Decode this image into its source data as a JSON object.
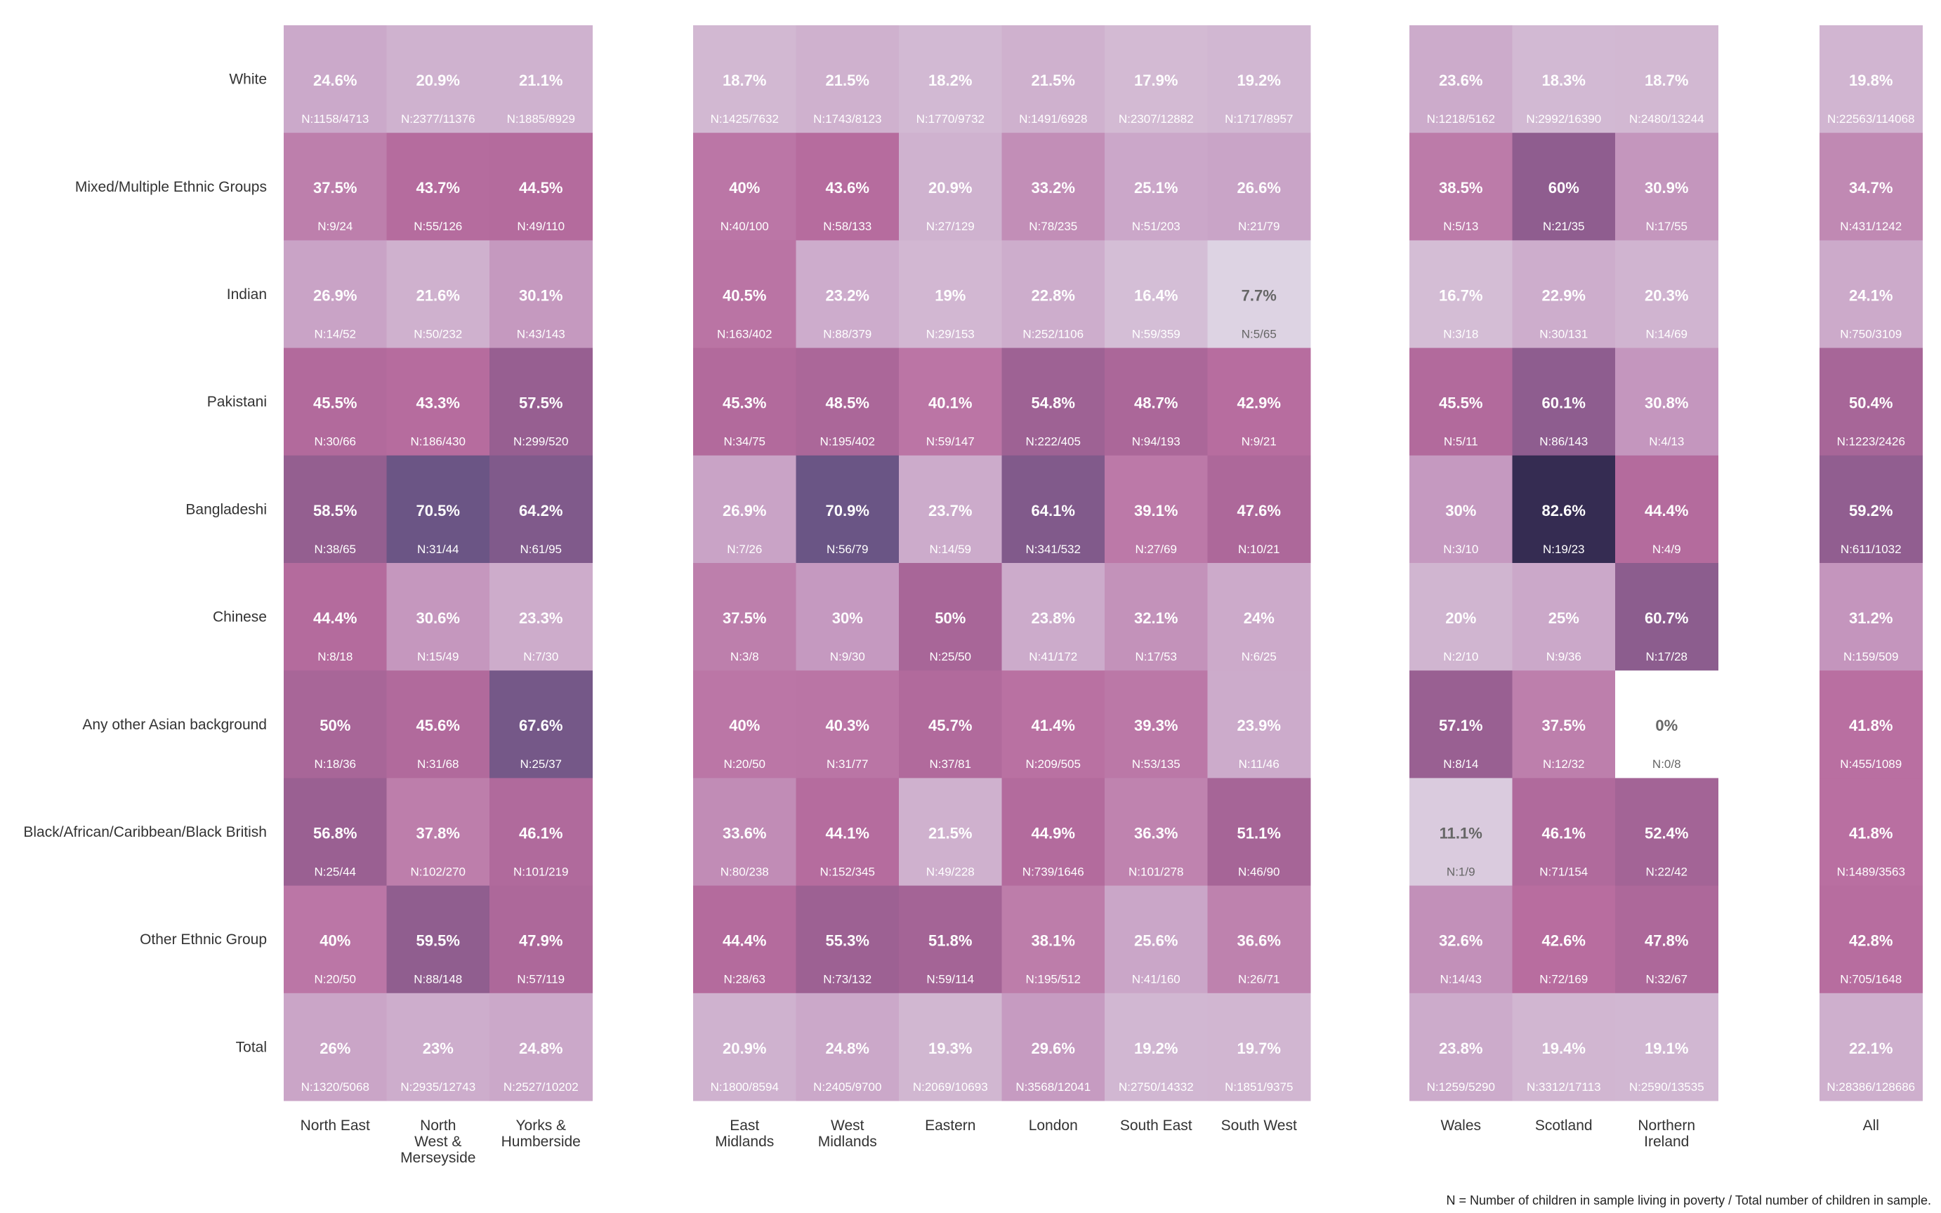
{
  "chart_data": {
    "type": "heatmap",
    "rows": [
      "White",
      "Mixed/Multiple Ethnic Groups",
      "Indian",
      "Pakistani",
      "Bangladeshi",
      "Chinese",
      "Any other Asian background",
      "Black/African/Caribbean/Black British",
      "Other Ethnic Group",
      "Total"
    ],
    "column_groups": [
      {
        "columns": [
          {
            "label": [
              "North East"
            ],
            "pct": [
              "24.6%",
              "37.5%",
              "26.9%",
              "45.5%",
              "58.5%",
              "44.4%",
              "50%",
              "56.8%",
              "40%",
              "26%"
            ],
            "n": [
              "N:1158/4713",
              "N:9/24",
              "N:14/52",
              "N:30/66",
              "N:38/65",
              "N:8/18",
              "N:18/36",
              "N:25/44",
              "N:20/50",
              "N:1320/5068"
            ]
          },
          {
            "label": [
              "North",
              "West &",
              "Merseyside"
            ],
            "pct": [
              "20.9%",
              "43.7%",
              "21.6%",
              "43.3%",
              "70.5%",
              "30.6%",
              "45.6%",
              "37.8%",
              "59.5%",
              "23%"
            ],
            "n": [
              "N:2377/11376",
              "N:55/126",
              "N:50/232",
              "N:186/430",
              "N:31/44",
              "N:15/49",
              "N:31/68",
              "N:102/270",
              "N:88/148",
              "N:2935/12743"
            ]
          },
          {
            "label": [
              "Yorks &",
              "Humberside"
            ],
            "pct": [
              "21.1%",
              "44.5%",
              "30.1%",
              "57.5%",
              "64.2%",
              "23.3%",
              "67.6%",
              "46.1%",
              "47.9%",
              "24.8%"
            ],
            "n": [
              "N:1885/8929",
              "N:49/110",
              "N:43/143",
              "N:299/520",
              "N:61/95",
              "N:7/30",
              "N:25/37",
              "N:101/219",
              "N:57/119",
              "N:2527/10202"
            ]
          }
        ]
      },
      {
        "columns": [
          {
            "label": [
              "East",
              "Midlands"
            ],
            "pct": [
              "18.7%",
              "40%",
              "40.5%",
              "45.3%",
              "26.9%",
              "37.5%",
              "40%",
              "33.6%",
              "44.4%",
              "20.9%"
            ],
            "n": [
              "N:1425/7632",
              "N:40/100",
              "N:163/402",
              "N:34/75",
              "N:7/26",
              "N:3/8",
              "N:20/50",
              "N:80/238",
              "N:28/63",
              "N:1800/8594"
            ]
          },
          {
            "label": [
              "West",
              "Midlands"
            ],
            "pct": [
              "21.5%",
              "43.6%",
              "23.2%",
              "48.5%",
              "70.9%",
              "30%",
              "40.3%",
              "44.1%",
              "55.3%",
              "24.8%"
            ],
            "n": [
              "N:1743/8123",
              "N:58/133",
              "N:88/379",
              "N:195/402",
              "N:56/79",
              "N:9/30",
              "N:31/77",
              "N:152/345",
              "N:73/132",
              "N:2405/9700"
            ]
          },
          {
            "label": [
              "Eastern"
            ],
            "pct": [
              "18.2%",
              "20.9%",
              "19%",
              "40.1%",
              "23.7%",
              "50%",
              "45.7%",
              "21.5%",
              "51.8%",
              "19.3%"
            ],
            "n": [
              "N:1770/9732",
              "N:27/129",
              "N:29/153",
              "N:59/147",
              "N:14/59",
              "N:25/50",
              "N:37/81",
              "N:49/228",
              "N:59/114",
              "N:2069/10693"
            ]
          },
          {
            "label": [
              "London"
            ],
            "pct": [
              "21.5%",
              "33.2%",
              "22.8%",
              "54.8%",
              "64.1%",
              "23.8%",
              "41.4%",
              "44.9%",
              "38.1%",
              "29.6%"
            ],
            "n": [
              "N:1491/6928",
              "N:78/235",
              "N:252/1106",
              "N:222/405",
              "N:341/532",
              "N:41/172",
              "N:209/505",
              "N:739/1646",
              "N:195/512",
              "N:3568/12041"
            ]
          },
          {
            "label": [
              "South East"
            ],
            "pct": [
              "17.9%",
              "25.1%",
              "16.4%",
              "48.7%",
              "39.1%",
              "32.1%",
              "39.3%",
              "36.3%",
              "25.6%",
              "19.2%"
            ],
            "n": [
              "N:2307/12882",
              "N:51/203",
              "N:59/359",
              "N:94/193",
              "N:27/69",
              "N:17/53",
              "N:53/135",
              "N:101/278",
              "N:41/160",
              "N:2750/14332"
            ]
          },
          {
            "label": [
              "South West"
            ],
            "pct": [
              "19.2%",
              "26.6%",
              "7.7%",
              "42.9%",
              "47.6%",
              "24%",
              "23.9%",
              "51.1%",
              "36.6%",
              "19.7%"
            ],
            "n": [
              "N:1717/8957",
              "N:21/79",
              "N:5/65",
              "N:9/21",
              "N:10/21",
              "N:6/25",
              "N:11/46",
              "N:46/90",
              "N:26/71",
              "N:1851/9375"
            ]
          }
        ]
      },
      {
        "columns": [
          {
            "label": [
              "Wales"
            ],
            "pct": [
              "23.6%",
              "38.5%",
              "16.7%",
              "45.5%",
              "30%",
              "20%",
              "57.1%",
              "11.1%",
              "32.6%",
              "23.8%"
            ],
            "n": [
              "N:1218/5162",
              "N:5/13",
              "N:3/18",
              "N:5/11",
              "N:3/10",
              "N:2/10",
              "N:8/14",
              "N:1/9",
              "N:14/43",
              "N:1259/5290"
            ]
          },
          {
            "label": [
              "Scotland"
            ],
            "pct": [
              "18.3%",
              "60%",
              "22.9%",
              "60.1%",
              "82.6%",
              "25%",
              "37.5%",
              "46.1%",
              "42.6%",
              "19.4%"
            ],
            "n": [
              "N:2992/16390",
              "N:21/35",
              "N:30/131",
              "N:86/143",
              "N:19/23",
              "N:9/36",
              "N:12/32",
              "N:71/154",
              "N:72/169",
              "N:3312/17113"
            ]
          },
          {
            "label": [
              "Northern",
              "Ireland"
            ],
            "pct": [
              "18.7%",
              "30.9%",
              "20.3%",
              "30.8%",
              "44.4%",
              "60.7%",
              "0%",
              "52.4%",
              "47.8%",
              "19.1%"
            ],
            "n": [
              "N:2480/13244",
              "N:17/55",
              "N:14/69",
              "N:4/13",
              "N:4/9",
              "N:17/28",
              "N:0/8",
              "N:22/42",
              "N:32/67",
              "N:2590/13535"
            ]
          }
        ]
      },
      {
        "columns": [
          {
            "label": [
              "All"
            ],
            "pct": [
              "19.8%",
              "34.7%",
              "24.1%",
              "50.4%",
              "59.2%",
              "31.2%",
              "41.8%",
              "41.8%",
              "42.8%",
              "22.1%"
            ],
            "n": [
              "N:22563/114068",
              "N:431/1242",
              "N:750/3109",
              "N:1223/2426",
              "N:611/1032",
              "N:159/509",
              "N:455/1089",
              "N:1489/3563",
              "N:705/1648",
              "N:28386/128686"
            ]
          }
        ]
      }
    ],
    "color_scale": [
      "#e4e4ee",
      "#d7c4d9",
      "#c79fc4",
      "#b86d9f",
      "#9a6092",
      "#6a5585",
      "#2a2448"
    ]
  },
  "footnote": "N = Number of children in sample living in poverty / Total number of children in sample."
}
